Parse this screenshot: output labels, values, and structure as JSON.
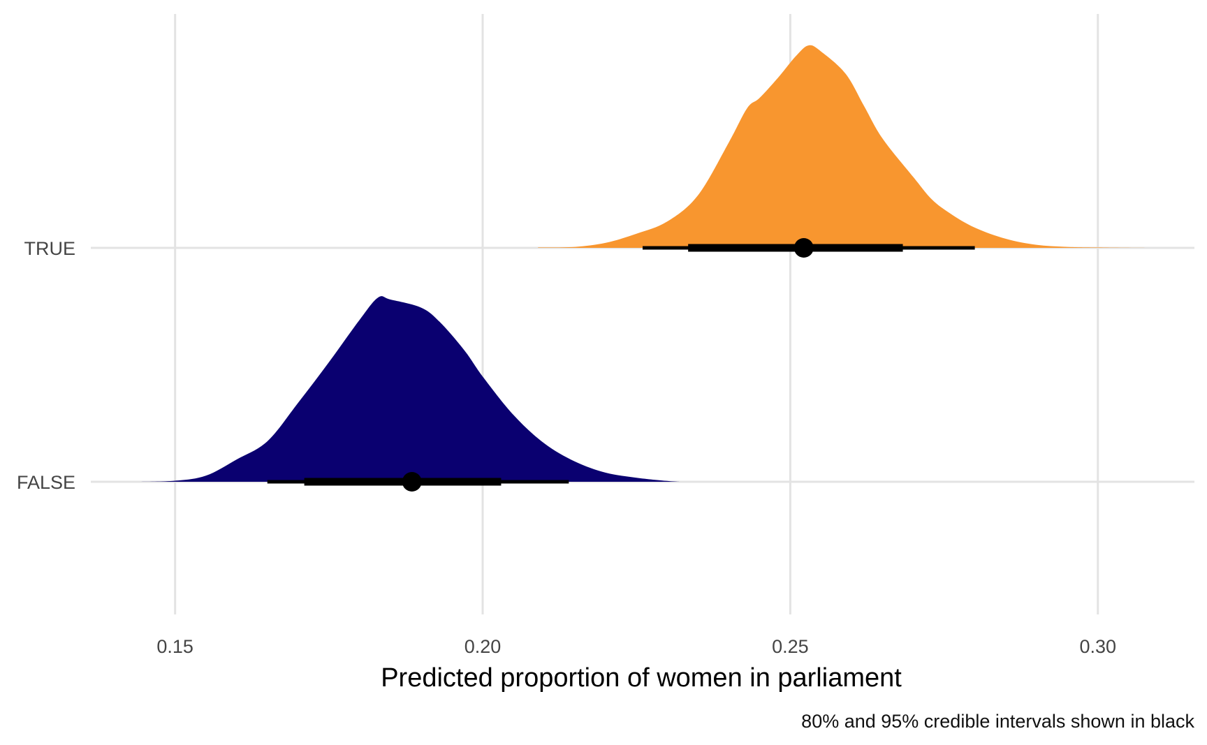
{
  "chart_data": {
    "type": "density-interval",
    "title": "",
    "xlabel": "Predicted proportion of women in parliament",
    "ylabel": "",
    "caption": "80% and 95% credible intervals shown in black",
    "xlim": [
      0.1363,
      0.3157
    ],
    "x_ticks": [
      0.15,
      0.2,
      0.25,
      0.3
    ],
    "x_tick_labels": [
      "0.15",
      "0.20",
      "0.25",
      "0.30"
    ],
    "categories": [
      "TRUE",
      "FALSE"
    ],
    "grid": true,
    "legend": "none",
    "series": [
      {
        "category": "TRUE",
        "color": "#F8962F",
        "point": 0.2522,
        "interval_80": [
          0.2334,
          0.2683
        ],
        "interval_95": [
          0.226,
          0.28
        ],
        "density": [
          [
            0.209,
            0.002
          ],
          [
            0.215,
            0.005
          ],
          [
            0.22,
            0.025
          ],
          [
            0.225,
            0.07
          ],
          [
            0.23,
            0.13
          ],
          [
            0.235,
            0.26
          ],
          [
            0.24,
            0.52
          ],
          [
            0.243,
            0.69
          ],
          [
            0.245,
            0.74
          ],
          [
            0.248,
            0.84
          ],
          [
            0.251,
            0.95
          ],
          [
            0.253,
            1.0
          ],
          [
            0.255,
            0.97
          ],
          [
            0.259,
            0.86
          ],
          [
            0.262,
            0.7
          ],
          [
            0.265,
            0.54
          ],
          [
            0.27,
            0.35
          ],
          [
            0.273,
            0.24
          ],
          [
            0.276,
            0.17
          ],
          [
            0.28,
            0.1
          ],
          [
            0.285,
            0.045
          ],
          [
            0.29,
            0.015
          ],
          [
            0.295,
            0.005
          ],
          [
            0.3,
            0.002
          ],
          [
            0.308,
            0.0
          ]
        ]
      },
      {
        "category": "FALSE",
        "color": "#0A0070",
        "point": 0.1885,
        "interval_80": [
          0.171,
          0.203
        ],
        "interval_95": [
          0.165,
          0.214
        ],
        "density": [
          [
            0.144,
            0.0
          ],
          [
            0.15,
            0.005
          ],
          [
            0.155,
            0.03
          ],
          [
            0.16,
            0.11
          ],
          [
            0.165,
            0.2
          ],
          [
            0.17,
            0.39
          ],
          [
            0.175,
            0.59
          ],
          [
            0.18,
            0.8
          ],
          [
            0.183,
            0.91
          ],
          [
            0.185,
            0.9
          ],
          [
            0.19,
            0.86
          ],
          [
            0.193,
            0.79
          ],
          [
            0.197,
            0.65
          ],
          [
            0.2,
            0.52
          ],
          [
            0.205,
            0.33
          ],
          [
            0.21,
            0.19
          ],
          [
            0.215,
            0.1
          ],
          [
            0.22,
            0.045
          ],
          [
            0.225,
            0.02
          ],
          [
            0.23,
            0.004
          ],
          [
            0.232,
            0.0
          ]
        ]
      }
    ]
  }
}
